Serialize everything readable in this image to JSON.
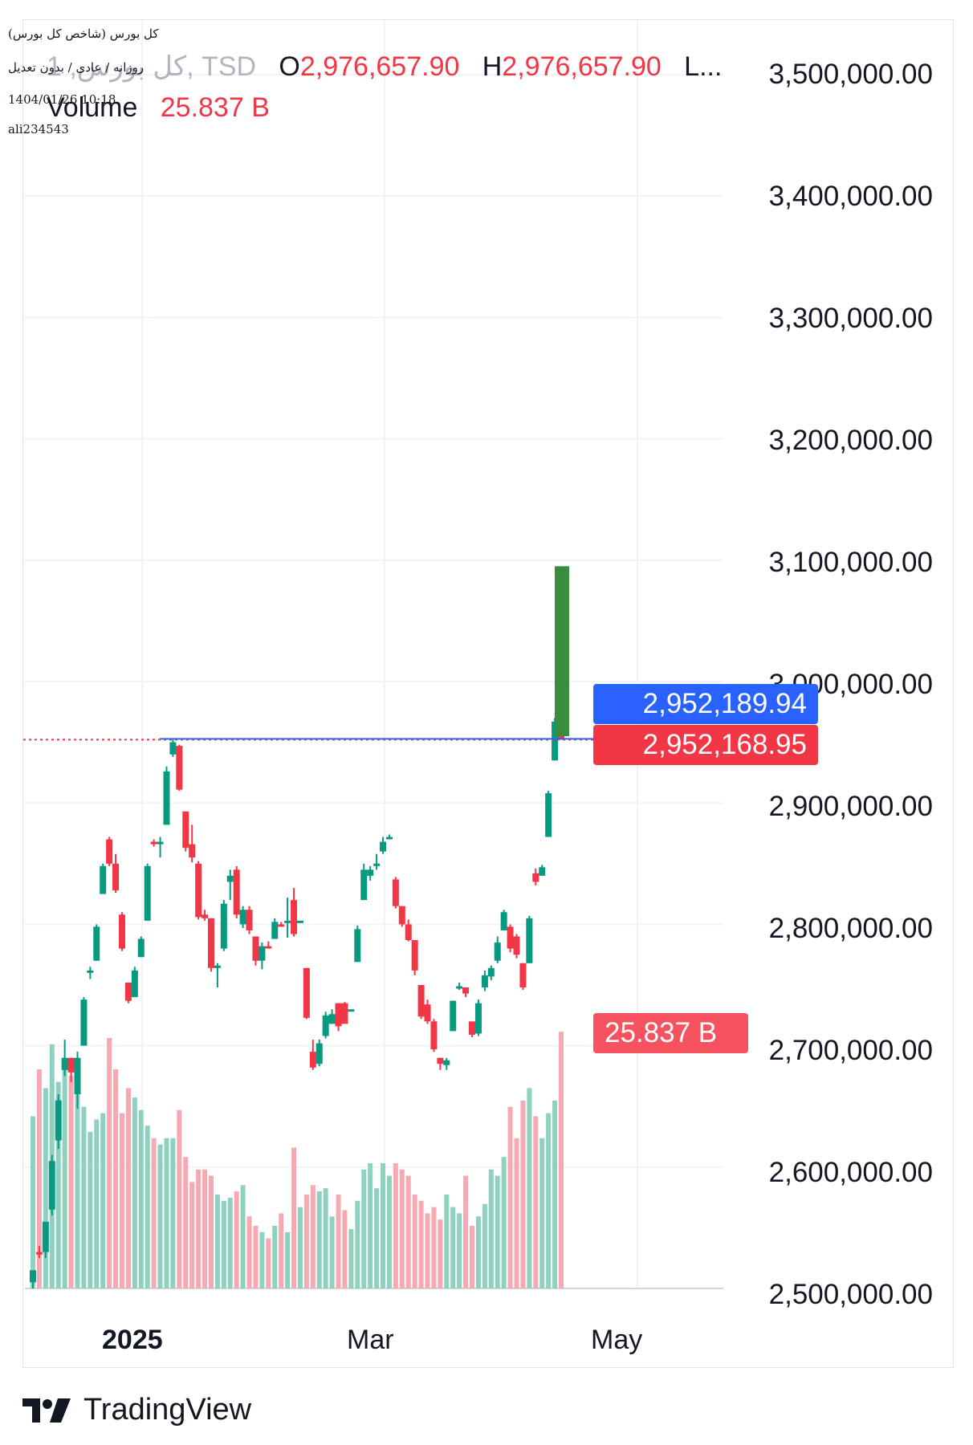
{
  "overlay": {
    "line1": "(کل بورس (شاخص کل بورس",
    "line2": "روزانه / عادی / بدون تعدیل",
    "line3": "1404/01/26 10:18",
    "line4": "ali234543"
  },
  "legend": {
    "symbol": "کل بورس, 1, TSD",
    "open_label": "O",
    "open_value": "2,976,657.90",
    "high_label": "H",
    "high_value": "2,976,657.90",
    "low_label": "L...",
    "volume_label": "Volume",
    "volume_value": "25.837 B"
  },
  "price_tags": {
    "blue": "2,952,189.94",
    "red": "2,952,168.95",
    "volume": "25.837 B"
  },
  "y_axis_labels": [
    "3,500,000.00",
    "3,400,000.00",
    "3,300,000.00",
    "3,200,000.00",
    "3,100,000.00",
    "3,000,000.00",
    "2,900,000.00",
    "2,800,000.00",
    "2,700,000.00",
    "2,600,000.00",
    "2,500,000.00"
  ],
  "x_axis_labels": [
    "2025",
    "Mar",
    "May"
  ],
  "brand": "TradingView",
  "colors": {
    "up": "#089981",
    "down": "#f23645",
    "up_vol": "#8fd1c1",
    "down_vol": "#f7a9b2",
    "projection": "#388e3c",
    "blue_tag": "#2962ff",
    "red_tag": "#f23645",
    "vol_tag": "#f7525f"
  },
  "chart_data": {
    "type": "candlestick",
    "y_scale": "linear",
    "ylim": [
      2500000,
      3500000
    ],
    "grid": true,
    "last_price": 2952168.95,
    "reference_price": 2952189.94,
    "projection_box": {
      "low": 2955000,
      "high": 3095000
    },
    "candles": [
      {
        "o": 2505000,
        "h": 2515000,
        "l": 2500000,
        "c": 2515000,
        "v": 0.55
      },
      {
        "o": 2530000,
        "h": 2535000,
        "l": 2525000,
        "c": 2528000,
        "v": 0.7
      },
      {
        "o": 2530000,
        "h": 2555000,
        "l": 2525000,
        "c": 2555000,
        "v": 0.64
      },
      {
        "o": 2565000,
        "h": 2610000,
        "l": 2560000,
        "c": 2605000,
        "v": 0.78
      },
      {
        "o": 2622000,
        "h": 2660000,
        "l": 2615000,
        "c": 2655000,
        "v": 0.66
      },
      {
        "o": 2680000,
        "h": 2705000,
        "l": 2675000,
        "c": 2690000,
        "v": 0.72
      },
      {
        "o": 2690000,
        "h": 2690000,
        "l": 2670000,
        "c": 2678000,
        "v": 0.68
      },
      {
        "o": 2660000,
        "h": 2695000,
        "l": 2648000,
        "c": 2690000,
        "v": 0.7
      },
      {
        "o": 2700000,
        "h": 2740000,
        "l": 2700000,
        "c": 2738000,
        "v": 0.58
      },
      {
        "o": 2760000,
        "h": 2765000,
        "l": 2755000,
        "c": 2762000,
        "v": 0.5
      },
      {
        "o": 2770000,
        "h": 2800000,
        "l": 2770000,
        "c": 2798000,
        "v": 0.54
      },
      {
        "o": 2825000,
        "h": 2850000,
        "l": 2825000,
        "c": 2848000,
        "v": 0.56
      },
      {
        "o": 2870000,
        "h": 2872000,
        "l": 2848000,
        "c": 2850000,
        "v": 0.8
      },
      {
        "o": 2850000,
        "h": 2858000,
        "l": 2826000,
        "c": 2828000,
        "v": 0.7
      },
      {
        "o": 2808000,
        "h": 2810000,
        "l": 2778000,
        "c": 2780000,
        "v": 0.56
      },
      {
        "o": 2752000,
        "h": 2752000,
        "l": 2735000,
        "c": 2737000,
        "v": 0.64
      },
      {
        "o": 2740000,
        "h": 2765000,
        "l": 2740000,
        "c": 2762000,
        "v": 0.61
      },
      {
        "o": 2773000,
        "h": 2790000,
        "l": 2773000,
        "c": 2788000,
        "v": 0.57
      },
      {
        "o": 2803000,
        "h": 2850000,
        "l": 2803000,
        "c": 2848000,
        "v": 0.52
      },
      {
        "o": 2868000,
        "h": 2870000,
        "l": 2864000,
        "c": 2866000,
        "v": 0.48
      },
      {
        "o": 2866000,
        "h": 2872000,
        "l": 2855000,
        "c": 2868000,
        "v": 0.46
      },
      {
        "o": 2882000,
        "h": 2930000,
        "l": 2882000,
        "c": 2926000,
        "v": 0.48
      },
      {
        "o": 2940000,
        "h": 2952000,
        "l": 2938000,
        "c": 2950000,
        "v": 0.48
      },
      {
        "o": 2947000,
        "h": 2948000,
        "l": 2910000,
        "c": 2911000,
        "v": 0.57
      },
      {
        "o": 2893000,
        "h": 2893000,
        "l": 2860000,
        "c": 2863000,
        "v": 0.42
      },
      {
        "o": 2866000,
        "h": 2882000,
        "l": 2851000,
        "c": 2855000,
        "v": 0.34
      },
      {
        "o": 2850000,
        "h": 2852000,
        "l": 2804000,
        "c": 2806000,
        "v": 0.38
      },
      {
        "o": 2808000,
        "h": 2812000,
        "l": 2803000,
        "c": 2805000,
        "v": 0.38
      },
      {
        "o": 2805000,
        "h": 2805000,
        "l": 2761000,
        "c": 2764000,
        "v": 0.36
      },
      {
        "o": 2765000,
        "h": 2768000,
        "l": 2748000,
        "c": 2766000,
        "v": 0.3
      },
      {
        "o": 2780000,
        "h": 2820000,
        "l": 2778000,
        "c": 2817000,
        "v": 0.28
      },
      {
        "o": 2835000,
        "h": 2845000,
        "l": 2820000,
        "c": 2840000,
        "v": 0.29
      },
      {
        "o": 2845000,
        "h": 2848000,
        "l": 2805000,
        "c": 2808000,
        "v": 0.31
      },
      {
        "o": 2800000,
        "h": 2815000,
        "l": 2797000,
        "c": 2812000,
        "v": 0.33
      },
      {
        "o": 2812000,
        "h": 2815000,
        "l": 2792000,
        "c": 2795000,
        "v": 0.23
      },
      {
        "o": 2790000,
        "h": 2790000,
        "l": 2766000,
        "c": 2770000,
        "v": 0.2
      },
      {
        "o": 2770000,
        "h": 2785000,
        "l": 2763000,
        "c": 2782000,
        "v": 0.18
      },
      {
        "o": 2782000,
        "h": 2786000,
        "l": 2780000,
        "c": 2781000,
        "v": 0.16
      },
      {
        "o": 2788000,
        "h": 2805000,
        "l": 2788000,
        "c": 2802000,
        "v": 0.2
      },
      {
        "o": 2800000,
        "h": 2802000,
        "l": 2798000,
        "c": 2799000,
        "v": 0.24
      },
      {
        "o": 2803000,
        "h": 2822000,
        "l": 2789000,
        "c": 2803000,
        "v": 0.18
      },
      {
        "o": 2820000,
        "h": 2830000,
        "l": 2790000,
        "c": 2792000,
        "v": 0.45
      },
      {
        "o": 2803000,
        "h": 2803000,
        "l": 2803000,
        "c": 2803000,
        "v": 0.26
      },
      {
        "o": 2764000,
        "h": 2764000,
        "l": 2722000,
        "c": 2723000,
        "v": 0.3
      },
      {
        "o": 2695000,
        "h": 2705000,
        "l": 2680000,
        "c": 2682000,
        "v": 0.33
      },
      {
        "o": 2685000,
        "h": 2705000,
        "l": 2683000,
        "c": 2702000,
        "v": 0.31
      },
      {
        "o": 2708000,
        "h": 2728000,
        "l": 2706000,
        "c": 2725000,
        "v": 0.32
      },
      {
        "o": 2718000,
        "h": 2730000,
        "l": 2718000,
        "c": 2726000,
        "v": 0.23
      },
      {
        "o": 2735000,
        "h": 2735000,
        "l": 2712000,
        "c": 2716000,
        "v": 0.3
      },
      {
        "o": 2735000,
        "h": 2736000,
        "l": 2718000,
        "c": 2718000,
        "v": 0.25
      },
      {
        "o": 2730000,
        "h": 2730000,
        "l": 2730000,
        "c": 2730000,
        "v": 0.19
      },
      {
        "o": 2769000,
        "h": 2799000,
        "l": 2769000,
        "c": 2796000,
        "v": 0.28
      },
      {
        "o": 2820000,
        "h": 2850000,
        "l": 2820000,
        "c": 2845000,
        "v": 0.38
      },
      {
        "o": 2840000,
        "h": 2848000,
        "l": 2836000,
        "c": 2845000,
        "v": 0.4
      },
      {
        "o": 2848000,
        "h": 2858000,
        "l": 2845000,
        "c": 2850000,
        "v": 0.32
      },
      {
        "o": 2860000,
        "h": 2872000,
        "l": 2858000,
        "c": 2868000,
        "v": 0.4
      },
      {
        "o": 2872000,
        "h": 2874000,
        "l": 2870000,
        "c": 2872000,
        "v": 0.36
      },
      {
        "o": 2837000,
        "h": 2839000,
        "l": 2813000,
        "c": 2815000,
        "v": 0.4
      },
      {
        "o": 2815000,
        "h": 2815000,
        "l": 2798000,
        "c": 2800000,
        "v": 0.38
      },
      {
        "o": 2800000,
        "h": 2804000,
        "l": 2786000,
        "c": 2787000,
        "v": 0.36
      },
      {
        "o": 2787000,
        "h": 2787000,
        "l": 2758000,
        "c": 2762000,
        "v": 0.3
      },
      {
        "o": 2750000,
        "h": 2750000,
        "l": 2722000,
        "c": 2724000,
        "v": 0.28
      },
      {
        "o": 2734000,
        "h": 2738000,
        "l": 2718000,
        "c": 2720000,
        "v": 0.24
      },
      {
        "o": 2720000,
        "h": 2722000,
        "l": 2695000,
        "c": 2697000,
        "v": 0.26
      },
      {
        "o": 2690000,
        "h": 2690000,
        "l": 2680000,
        "c": 2685000,
        "v": 0.22
      },
      {
        "o": 2684000,
        "h": 2690000,
        "l": 2680000,
        "c": 2688000,
        "v": 0.3
      },
      {
        "o": 2712000,
        "h": 2737000,
        "l": 2712000,
        "c": 2737000,
        "v": 0.26
      },
      {
        "o": 2748000,
        "h": 2752000,
        "l": 2746000,
        "c": 2749000,
        "v": 0.24
      },
      {
        "o": 2748000,
        "h": 2748000,
        "l": 2740000,
        "c": 2743000,
        "v": 0.36
      },
      {
        "o": 2720000,
        "h": 2720000,
        "l": 2707000,
        "c": 2709000,
        "v": 0.2
      },
      {
        "o": 2710000,
        "h": 2738000,
        "l": 2708000,
        "c": 2735000,
        "v": 0.23
      },
      {
        "o": 2748000,
        "h": 2762000,
        "l": 2745000,
        "c": 2758000,
        "v": 0.27
      },
      {
        "o": 2757000,
        "h": 2766000,
        "l": 2754000,
        "c": 2764000,
        "v": 0.38
      },
      {
        "o": 2770000,
        "h": 2790000,
        "l": 2768000,
        "c": 2785000,
        "v": 0.36
      },
      {
        "o": 2795000,
        "h": 2812000,
        "l": 2795000,
        "c": 2810000,
        "v": 0.42
      },
      {
        "o": 2798000,
        "h": 2800000,
        "l": 2777000,
        "c": 2780000,
        "v": 0.58
      },
      {
        "o": 2790000,
        "h": 2792000,
        "l": 2772000,
        "c": 2775000,
        "v": 0.48
      },
      {
        "o": 2768000,
        "h": 2768000,
        "l": 2746000,
        "c": 2748000,
        "v": 0.6
      },
      {
        "o": 2768000,
        "h": 2807000,
        "l": 2768000,
        "c": 2805000,
        "v": 0.64
      },
      {
        "o": 2842000,
        "h": 2846000,
        "l": 2832000,
        "c": 2835000,
        "v": 0.55
      },
      {
        "o": 2840000,
        "h": 2849000,
        "l": 2840000,
        "c": 2847000,
        "v": 0.48
      },
      {
        "o": 2872000,
        "h": 2910000,
        "l": 2872000,
        "c": 2908000,
        "v": 0.56
      },
      {
        "o": 2935000,
        "h": 2970000,
        "l": 2935000,
        "c": 2967000,
        "v": 0.6
      },
      {
        "o": 2976000,
        "h": 2977000,
        "l": 2952000,
        "c": 2953000,
        "v": 0.82
      }
    ]
  }
}
